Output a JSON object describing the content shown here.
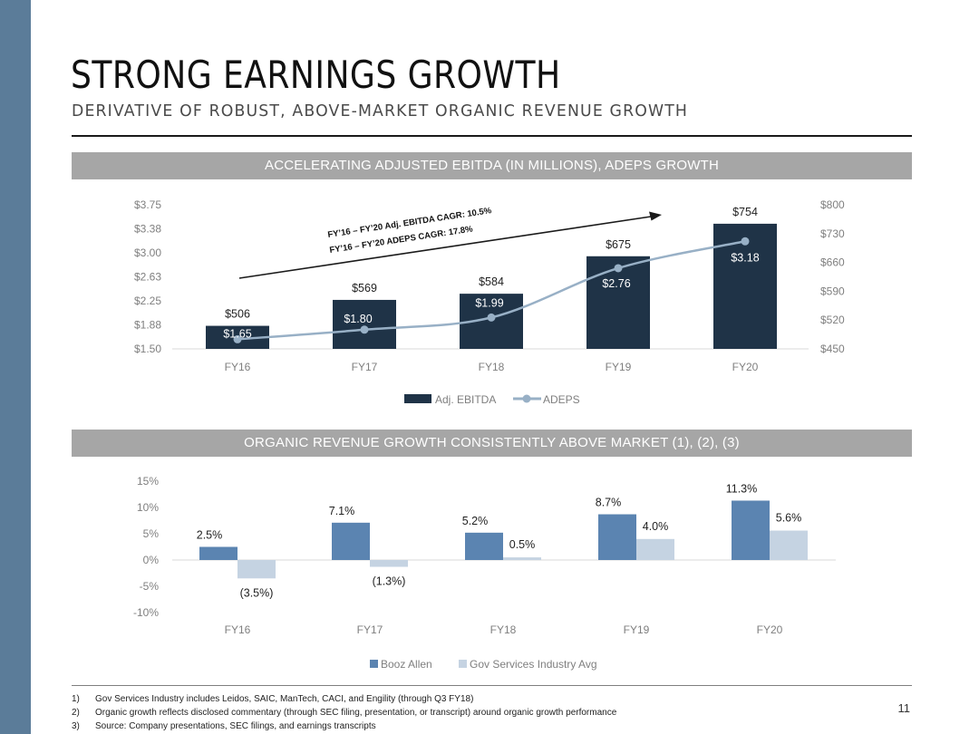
{
  "slide": {
    "title": "STRONG EARNINGS GROWTH",
    "subtitle": "DERIVATIVE OF ROBUST, ABOVE-MARKET ORGANIC REVENUE GROWTH",
    "page_number": "11",
    "sidebar_color": "#5b7c99"
  },
  "colors": {
    "ebitda_bar": "#1f3347",
    "adeps_line": "#98b0c6",
    "booz_allen_bar": "#5b84b1",
    "industry_bar": "#c5d3e2"
  },
  "footnotes": [
    {
      "num": "1)",
      "text": "Gov Services Industry includes Leidos, SAIC, ManTech, CACI, and Engility (through Q3 FY18)"
    },
    {
      "num": "2)",
      "text": "Organic growth reflects disclosed commentary (through SEC filing, presentation, or transcript) around organic growth performance"
    },
    {
      "num": "3)",
      "text": "Source: Company presentations, SEC filings, and earnings transcripts"
    }
  ],
  "chart_data": [
    {
      "type": "bar",
      "title": "ACCELERATING ADJUSTED EBITDA (IN MILLIONS), ADEPS GROWTH",
      "categories": [
        "FY16",
        "FY17",
        "FY18",
        "FY19",
        "FY20"
      ],
      "series": [
        {
          "name": "Adj. EBITDA",
          "type": "bar",
          "axis": "right",
          "values": [
            506,
            569,
            584,
            675,
            754
          ],
          "labels": [
            "$506",
            "$569",
            "$584",
            "$675",
            "$754"
          ]
        },
        {
          "name": "ADEPS",
          "type": "line",
          "axis": "left",
          "values": [
            1.65,
            1.8,
            1.99,
            2.76,
            3.18
          ],
          "labels": [
            "$1.65",
            "$1.80",
            "$1.99",
            "$2.76",
            "$3.18"
          ]
        }
      ],
      "y_left": {
        "ticks": [
          "$3.75",
          "$3.38",
          "$3.00",
          "$2.63",
          "$2.25",
          "$1.88",
          "$1.50"
        ],
        "range": [
          1.5,
          3.75
        ]
      },
      "y_right": {
        "ticks": [
          "$800",
          "$730",
          "$660",
          "$590",
          "$520",
          "$450"
        ],
        "range": [
          450,
          800
        ]
      },
      "annotations": [
        "FY’16 – FY’20 Adj. EBITDA CAGR: 10.5%",
        "FY’16 – FY’20 ADEPS CAGR: 17.8%"
      ],
      "legend": "bottom",
      "grid": false
    },
    {
      "type": "bar",
      "title": "ORGANIC REVENUE GROWTH CONSISTENTLY ABOVE MARKET (1), (2), (3)",
      "categories": [
        "FY16",
        "FY17",
        "FY18",
        "FY19",
        "FY20"
      ],
      "series": [
        {
          "name": "Booz Allen",
          "values": [
            2.5,
            7.1,
            5.2,
            8.7,
            11.3
          ],
          "labels": [
            "2.5%",
            "7.1%",
            "5.2%",
            "8.7%",
            "11.3%"
          ]
        },
        {
          "name": "Gov Services Industry Avg",
          "values": [
            -3.5,
            -1.3,
            0.5,
            4.0,
            5.6
          ],
          "labels": [
            "(3.5%)",
            "(1.3%)",
            "0.5%",
            "4.0%",
            "5.6%"
          ]
        }
      ],
      "y_ticks": [
        "15%",
        "10%",
        "5%",
        "0%",
        "-5%",
        "-10%"
      ],
      "ylim": [
        -10,
        15
      ],
      "legend": "bottom",
      "grid": false
    }
  ]
}
